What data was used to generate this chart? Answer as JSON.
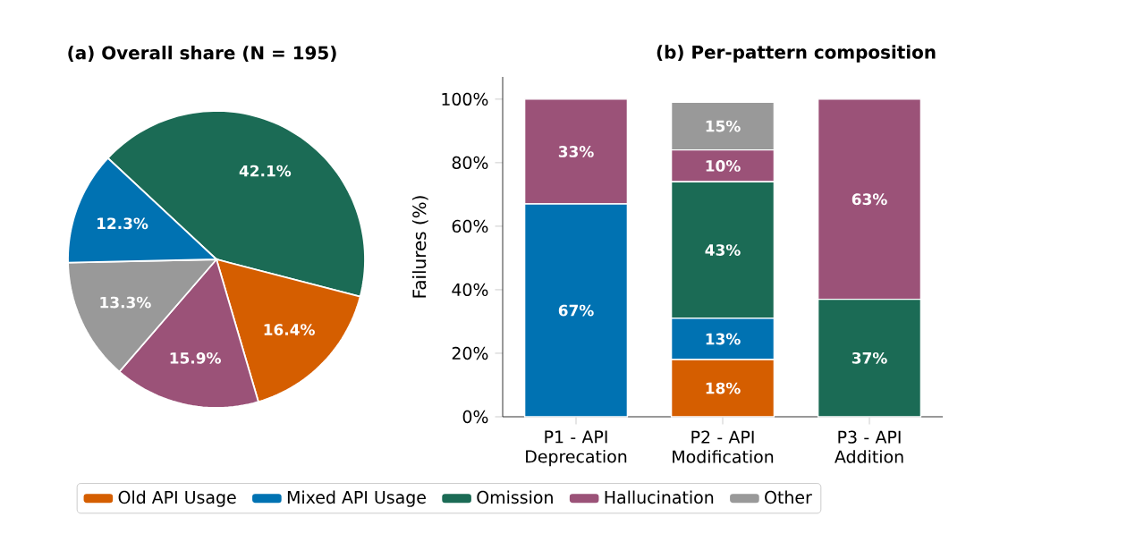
{
  "chart_data": [
    {
      "type": "pie",
      "title": "(a) Overall share  (N = 195)",
      "categories": [
        null,
        null,
        null,
        null,
        null
      ],
      "values": [
        42.1,
        16.4,
        15.9,
        13.3,
        12.3
      ],
      "colors": [
        "#1b6b55",
        "#d55e00",
        "#9b5278",
        "#999999",
        "#0072b2"
      ],
      "value_labels": [
        "42.1%",
        "16.4%",
        "15.9%",
        "13.3%",
        "12.3%"
      ]
    },
    {
      "type": "bar",
      "stacked": true,
      "title": "(b) Per-pattern composition",
      "ylabel": "Failures (%)",
      "categories": [
        "P1 - API Deprecation",
        "P2 - API Modification",
        "P3 - API Addition"
      ],
      "ylim": [
        0,
        107
      ],
      "yticks": [
        {
          "value": 0,
          "label": "0%"
        },
        {
          "value": 20,
          "label": "20%"
        },
        {
          "value": 40,
          "label": "40%"
        },
        {
          "value": 60,
          "label": "60%"
        },
        {
          "value": 80,
          "label": "80%"
        },
        {
          "value": 100,
          "label": "100%"
        }
      ],
      "legend": "bottom",
      "series": [
        {
          "name": "Old API Usage",
          "color": "#d55e00",
          "values": [
            null,
            18,
            null
          ],
          "value_labels": [
            null,
            "18%",
            null
          ]
        },
        {
          "name": "Mixed API Usage",
          "color": "#0072b2",
          "values": [
            67,
            13,
            null
          ],
          "value_labels": [
            "67%",
            "13%",
            null
          ]
        },
        {
          "name": "Omission",
          "color": "#1b6b55",
          "values": [
            null,
            43,
            37
          ],
          "value_labels": [
            null,
            "43%",
            "37%"
          ]
        },
        {
          "name": "Hallucination",
          "color": "#9b5278",
          "values": [
            33,
            10,
            63
          ],
          "value_labels": [
            "33%",
            "10%",
            "63%"
          ]
        },
        {
          "name": "Other",
          "color": "#999999",
          "values": [
            null,
            15,
            null
          ],
          "value_labels": [
            null,
            "15%",
            null
          ]
        }
      ]
    }
  ]
}
